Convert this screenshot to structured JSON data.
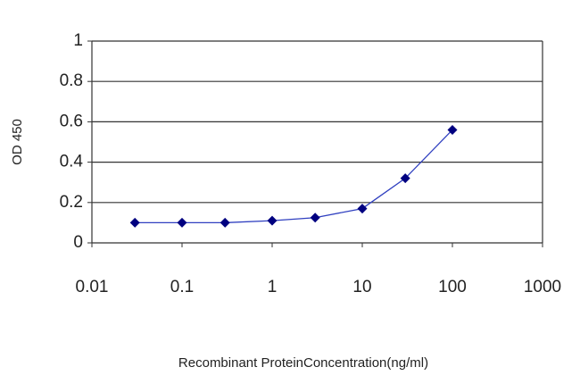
{
  "chart_data": {
    "type": "line",
    "x_label": "Recombinant ProteinConcentration(ng/ml)",
    "y_label": "OD 450",
    "x": [
      0.03,
      0.1,
      0.3,
      1,
      3,
      10,
      30,
      100
    ],
    "series": [
      {
        "color": "#000080",
        "values": [
          0.1,
          0.1,
          0.1,
          0.11,
          0.125,
          0.17,
          0.32,
          0.56
        ]
      }
    ],
    "xscale": "log",
    "xlim": [
      0.01,
      1000
    ],
    "xticks": [
      0.01,
      0.1,
      1,
      10,
      100,
      1000
    ],
    "ylim": [
      0,
      1
    ],
    "yticks": [
      0,
      0.2,
      0.4,
      0.6,
      0.8,
      1
    ],
    "grid": true
  }
}
